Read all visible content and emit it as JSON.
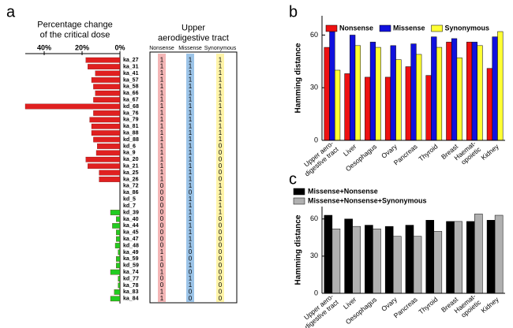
{
  "chart_data": [
    {
      "type": "barh",
      "label": "a",
      "title": "Percentage change\nof the critical dose",
      "x_reversed": true,
      "xlim": [
        0,
        50
      ],
      "xticks": [
        {
          "value": 40,
          "label": "40%"
        },
        {
          "value": 20,
          "label": "20%"
        },
        {
          "value": 0,
          "label": "0%"
        }
      ],
      "categories": [
        "ka_27",
        "ka_31",
        "ka_41",
        "ka_57",
        "ka_58",
        "ka_66",
        "ka_67",
        "kd_68",
        "ka_76",
        "ka_79",
        "ka_81",
        "ka_88",
        "kd_88",
        "kd_6",
        "ka_9",
        "ka_20",
        "ka_21",
        "ka_25",
        "ka_26",
        "ka_72",
        "ka_86",
        "kd_5",
        "kd_7",
        "kd_39",
        "ka_40",
        "ka_44",
        "ka_45",
        "ka_47",
        "kd_48",
        "ka_49",
        "ka_59",
        "kd_59",
        "ka_74",
        "kd_77",
        "ka_78",
        "ka_83",
        "ka_84"
      ],
      "values": [
        18,
        17,
        13,
        15,
        14,
        13,
        14,
        50,
        14,
        16,
        15,
        15,
        14,
        12,
        12.5,
        18,
        17,
        11,
        11,
        0,
        0,
        0,
        0,
        5,
        2,
        4,
        2,
        2,
        2.5,
        1,
        2,
        2,
        5,
        1,
        1,
        3,
        5
      ],
      "colors": [
        "#e02020",
        "#e02020",
        "#e02020",
        "#e02020",
        "#e02020",
        "#e02020",
        "#e02020",
        "#e02020",
        "#e02020",
        "#e02020",
        "#e02020",
        "#e02020",
        "#e02020",
        "#e02020",
        "#e02020",
        "#e02020",
        "#e02020",
        "#e02020",
        "#e02020",
        "#e02020",
        "#e02020",
        "#e02020",
        "#e02020",
        "#22cc22",
        "#22cc22",
        "#22cc22",
        "#22cc22",
        "#22cc22",
        "#22cc22",
        "#22cc22",
        "#22cc22",
        "#22cc22",
        "#22cc22",
        "#22cc22",
        "#22cc22",
        "#22cc22",
        "#22cc22"
      ]
    },
    {
      "type": "bar",
      "label": "b",
      "ylabel": "Hamming distance",
      "legend": "top",
      "categories": [
        "Upper aero-\ndigestive tract",
        "Liver",
        "Oesophagus",
        "Ovary",
        "Pancreas",
        "Thyroid",
        "Breast",
        "Haemat-\nopoietic",
        "Kidney"
      ],
      "ylim": [
        0,
        71
      ],
      "yticks": [
        0,
        30,
        60
      ],
      "series": [
        {
          "name": "Nonsense",
          "color": "#ee1111",
          "values": [
            53,
            38,
            36,
            36,
            42,
            37,
            56,
            56,
            41
          ]
        },
        {
          "name": "Missense",
          "color": "#1111dd",
          "values": [
            62,
            60,
            56,
            54,
            55,
            59,
            58,
            56,
            59
          ]
        },
        {
          "name": "Synonymous",
          "color": "#ffff33",
          "values": [
            40,
            54,
            53,
            46,
            49,
            53,
            47,
            54,
            62
          ]
        }
      ]
    },
    {
      "type": "bar",
      "label": "c",
      "ylabel": "Hamming distance",
      "legend": "top-left",
      "categories": [
        "Upper aero-\ndigestive tract",
        "Liver",
        "Oesophagus",
        "Ovary",
        "Pancreas",
        "Thyroid",
        "Breast",
        "Haemat-\nopoietic",
        "Kidney"
      ],
      "ylim": [
        0,
        70
      ],
      "yticks": [
        0,
        30,
        60
      ],
      "series": [
        {
          "name": "Missense+Nonsense",
          "color": "#000000",
          "values": [
            63,
            60,
            55,
            54,
            55,
            59,
            58,
            58,
            59
          ]
        },
        {
          "name": "Missense+Nonsense+Synonymous",
          "color": "#b0b0b0",
          "values": [
            52,
            54,
            52,
            46,
            46,
            50,
            58,
            64,
            63
          ]
        }
      ]
    }
  ],
  "table": {
    "title": "Upper\naerodigestive tract",
    "columns": [
      "Nonsense",
      "Missense",
      "Synonymous"
    ],
    "rows": [
      [
        1,
        1,
        1
      ],
      [
        1,
        1,
        1
      ],
      [
        1,
        1,
        1
      ],
      [
        1,
        1,
        1
      ],
      [
        1,
        1,
        1
      ],
      [
        1,
        1,
        1
      ],
      [
        1,
        1,
        1
      ],
      [
        1,
        1,
        1
      ],
      [
        1,
        1,
        1
      ],
      [
        1,
        1,
        1
      ],
      [
        1,
        1,
        1
      ],
      [
        1,
        1,
        1
      ],
      [
        1,
        1,
        1
      ],
      [
        1,
        1,
        0
      ],
      [
        1,
        1,
        0
      ],
      [
        1,
        1,
        0
      ],
      [
        1,
        1,
        0
      ],
      [
        1,
        1,
        0
      ],
      [
        1,
        1,
        0
      ],
      [
        0,
        1,
        1
      ],
      [
        0,
        0,
        1
      ],
      [
        0,
        1,
        1
      ],
      [
        0,
        1,
        1
      ],
      [
        0,
        1,
        1
      ],
      [
        0,
        1,
        0
      ],
      [
        0,
        1,
        0
      ],
      [
        0,
        1,
        0
      ],
      [
        0,
        1,
        0
      ],
      [
        0,
        1,
        0
      ],
      [
        1,
        0,
        0
      ],
      [
        1,
        0,
        0
      ],
      [
        0,
        1,
        0
      ],
      [
        1,
        0,
        0
      ],
      [
        0,
        1,
        0
      ],
      [
        0,
        1,
        0
      ],
      [
        1,
        0,
        0
      ],
      [
        1,
        0,
        0
      ]
    ]
  }
}
